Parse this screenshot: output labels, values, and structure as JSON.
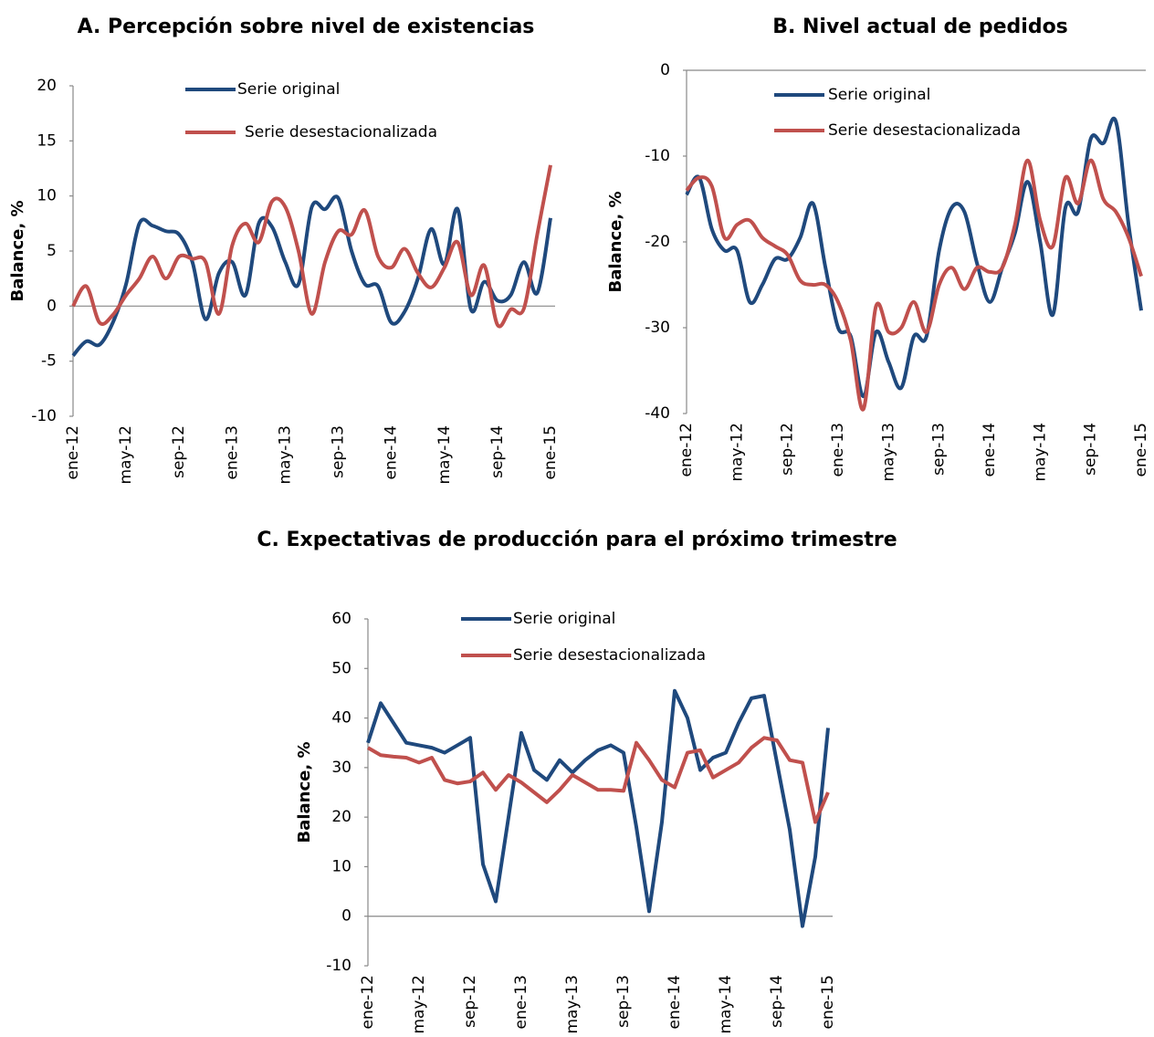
{
  "chart_data": [
    {
      "type": "line",
      "title": "A.  Percepción sobre nivel de existencias",
      "y_label": "Balance, %",
      "smooth": true,
      "categories": [
        "ene-12",
        null,
        null,
        null,
        "may-12",
        null,
        null,
        null,
        "sep-12",
        null,
        null,
        null,
        "ene-13",
        null,
        null,
        null,
        "may-13",
        null,
        null,
        null,
        "sep-13",
        null,
        null,
        null,
        "ene-14",
        null,
        null,
        null,
        "may-14",
        null,
        null,
        null,
        "sep-14",
        null,
        null,
        null,
        "ene-15"
      ],
      "ylim": [
        -10,
        20
      ],
      "yticks": [
        -10,
        -5,
        0,
        5,
        10,
        15,
        20
      ],
      "series": [
        {
          "name": "Serie original",
          "color": "#1f497d",
          "values": [
            -4.5,
            -3.2,
            -3.5,
            -1.5,
            2,
            7.5,
            7.3,
            6.8,
            6.5,
            4,
            -1.2,
            3,
            4,
            1,
            7.5,
            7.2,
            4,
            2,
            9,
            8.8,
            9.8,
            5,
            2,
            1.8,
            -1.5,
            -0.5,
            2.5,
            7,
            3.8,
            8.8,
            -0.3,
            2.2,
            0.5,
            1,
            4,
            1.2,
            8
          ]
        },
        {
          "name": "Serie desestacionalizada",
          "color": "#c0504d",
          "values": [
            0,
            1.8,
            -1.5,
            -0.8,
            1,
            2.5,
            4.5,
            2.5,
            4.5,
            4.3,
            4,
            -0.7,
            5.5,
            7.5,
            5.8,
            9.5,
            9,
            5,
            -0.7,
            4,
            6.8,
            6.5,
            8.7,
            4.5,
            3.5,
            5.2,
            3,
            1.7,
            3.5,
            5.8,
            1,
            3.7,
            -1.7,
            -0.3,
            -0.2,
            6.5,
            12.8
          ]
        }
      ]
    },
    {
      "type": "line",
      "title": "B.  Nivel actual de pedidos",
      "y_label": "Balance, %",
      "smooth": true,
      "categories": [
        "ene-12",
        null,
        null,
        null,
        "may-12",
        null,
        null,
        null,
        "sep-12",
        null,
        null,
        null,
        "ene-13",
        null,
        null,
        null,
        "may-13",
        null,
        null,
        null,
        "sep-13",
        null,
        null,
        null,
        "ene-14",
        null,
        null,
        null,
        "may-14",
        null,
        null,
        null,
        "sep-14",
        null,
        null,
        null,
        "ene-15"
      ],
      "ylim": [
        -40,
        0
      ],
      "yticks": [
        -40,
        -30,
        -20,
        -10,
        0
      ],
      "series": [
        {
          "name": "Serie original",
          "color": "#1f497d",
          "values": [
            -14.5,
            -12.5,
            -18.5,
            -21,
            -21,
            -27,
            -25,
            -22,
            -22,
            -19.5,
            -15.5,
            -23,
            -30,
            -31,
            -38,
            -30.5,
            -34,
            -37,
            -31,
            -31,
            -21,
            -16,
            -16.5,
            -22.5,
            -27,
            -23,
            -19,
            -13,
            -20,
            -28.5,
            -16,
            -16.5,
            -8,
            -8.5,
            -6,
            -18,
            -28
          ]
        },
        {
          "name": "Serie desestacionalizada",
          "color": "#c0504d",
          "values": [
            -14,
            -12.5,
            -13.5,
            -19.5,
            -18,
            -17.5,
            -19.5,
            -20.5,
            -21.5,
            -24.5,
            -25,
            -25,
            -27,
            -31.5,
            -39.5,
            -27.5,
            -30.5,
            -30,
            -27,
            -30.5,
            -25,
            -23,
            -25.5,
            -23,
            -23.5,
            -23,
            -18,
            -10.5,
            -17.5,
            -20.5,
            -12.5,
            -15.5,
            -10.5,
            -15,
            -16.5,
            -19.5,
            -24
          ]
        }
      ]
    },
    {
      "type": "line",
      "title": "C.  Expectativas de producción para el próximo trimestre",
      "y_label": "Balance, %",
      "smooth": false,
      "categories": [
        "ene-12",
        null,
        null,
        null,
        "may-12",
        null,
        null,
        null,
        "sep-12",
        null,
        null,
        null,
        "ene-13",
        null,
        null,
        null,
        "may-13",
        null,
        null,
        null,
        "sep-13",
        null,
        null,
        null,
        "ene-14",
        null,
        null,
        null,
        "may-14",
        null,
        null,
        null,
        "sep-14",
        null,
        null,
        null,
        "ene-15"
      ],
      "ylim": [
        -10,
        60
      ],
      "yticks": [
        -10,
        0,
        10,
        20,
        30,
        40,
        50,
        60
      ],
      "series": [
        {
          "name": "Serie original",
          "color": "#1f497d",
          "values": [
            35,
            43,
            39,
            35,
            34.5,
            34,
            33,
            34.5,
            36,
            10.5,
            3,
            20,
            37,
            29.5,
            27.5,
            31.5,
            29,
            31.5,
            33.5,
            34.5,
            33,
            18,
            1,
            19,
            45.5,
            40,
            29.5,
            32,
            33,
            39,
            44,
            44.5,
            31,
            17.5,
            -2,
            12,
            38
          ]
        },
        {
          "name": "Serie desestacionalizada",
          "color": "#c0504d",
          "values": [
            34,
            32.5,
            32.2,
            32,
            31,
            32,
            27.5,
            26.8,
            27.2,
            29,
            25.5,
            28.5,
            27,
            25,
            23,
            25.5,
            28.5,
            27,
            25.5,
            25.5,
            25.3,
            35,
            31.5,
            27.5,
            26,
            33,
            33.5,
            28,
            29.5,
            31,
            34,
            36,
            35.5,
            31.5,
            31,
            19,
            25
          ]
        }
      ]
    }
  ]
}
